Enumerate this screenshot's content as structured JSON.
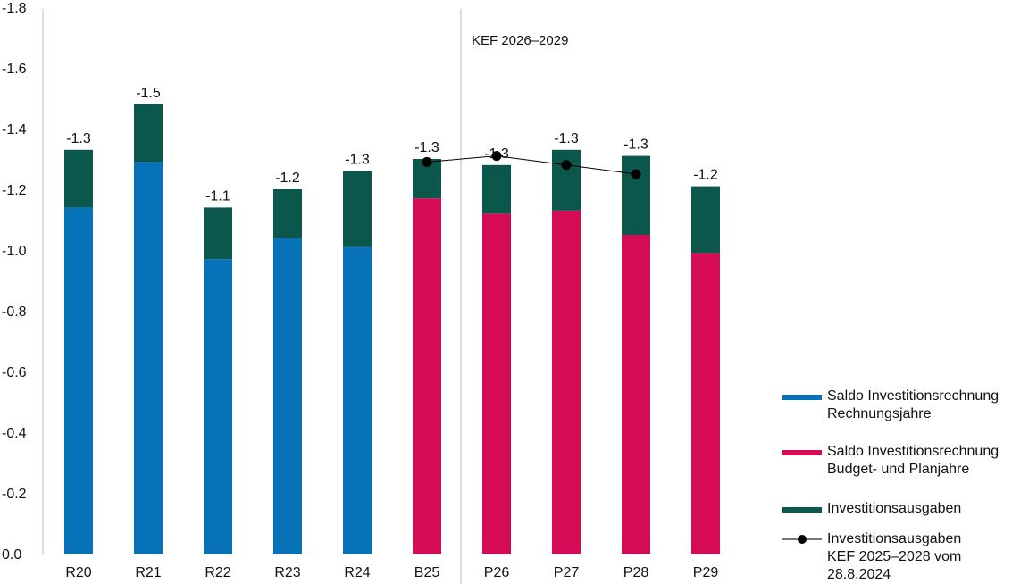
{
  "chart_data": {
    "type": "bar",
    "stacked": true,
    "categories": [
      "R20",
      "R21",
      "R22",
      "R23",
      "R24",
      "B25",
      "P26",
      "P27",
      "P28",
      "P29"
    ],
    "ylim": [
      0,
      -1.8
    ],
    "y_ticks": [
      "-1.8",
      "-1.6",
      "-1.4",
      "-1.2",
      "-1.0",
      "-0.8",
      "-0.6",
      "-0.4",
      "-0.2",
      "0.0"
    ],
    "y_tick_values": [
      -1.8,
      -1.6,
      -1.4,
      -1.2,
      -1.0,
      -0.8,
      -0.6,
      -0.4,
      -0.2,
      0.0
    ],
    "grid": false,
    "series": [
      {
        "name": "Saldo Investitionsrechnung Rechnungsjahre",
        "color": "#0872b8",
        "values": [
          -1.14,
          -1.29,
          -0.97,
          -1.04,
          -1.01,
          null,
          null,
          null,
          null,
          null
        ]
      },
      {
        "name": "Saldo Investitionsrechnung Budget- und Planjahre",
        "color": "#d50b55",
        "values": [
          null,
          null,
          null,
          null,
          null,
          -1.17,
          -1.12,
          -1.13,
          -1.05,
          -0.99
        ]
      },
      {
        "name": "Investitionsausgaben",
        "color": "#0b574b",
        "values": [
          -0.19,
          -0.19,
          -0.17,
          -0.16,
          -0.25,
          -0.13,
          -0.16,
          -0.2,
          -0.26,
          -0.22
        ]
      },
      {
        "name": "Investitionsausgaben KEF 2025–2028 vom 28.8.2024",
        "type": "line",
        "color": "#000000",
        "values": [
          null,
          null,
          null,
          null,
          null,
          -1.29,
          -1.31,
          -1.28,
          -1.25,
          null
        ]
      }
    ],
    "data_labels": [
      "-1.3",
      "-1.5",
      "-1.1",
      "-1.2",
      "-1.3",
      "-1.3",
      "-1.3",
      "-1.3",
      "-1.3",
      "-1.2"
    ],
    "annotation": "KEF 2026–2029",
    "legend_position": "bottom-right"
  },
  "legend": [
    {
      "line1": "Saldo Investitionsrechnung",
      "line2": "Rechnungsjahre"
    },
    {
      "line1": "Saldo Investitionsrechnung",
      "line2": "Budget- und Planjahre"
    },
    {
      "line1": "Investitionsausgaben",
      "line2": ""
    },
    {
      "line1": "Investitionsausgaben",
      "line2": "KEF 2025–2028 vom",
      "line3": "28.8.2024"
    }
  ]
}
